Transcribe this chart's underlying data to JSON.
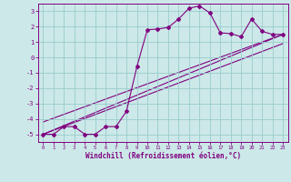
{
  "title": "",
  "xlabel": "Windchill (Refroidissement éolien,°C)",
  "ylabel": "",
  "bg_color": "#cce8e8",
  "grid_color": "#99cccc",
  "line_color": "#800080",
  "xlim": [
    -0.5,
    23.5
  ],
  "ylim": [
    -5.5,
    3.5
  ],
  "xticks": [
    0,
    1,
    2,
    3,
    4,
    5,
    6,
    7,
    8,
    9,
    10,
    11,
    12,
    13,
    14,
    15,
    16,
    17,
    18,
    19,
    20,
    21,
    22,
    23
  ],
  "yticks": [
    -5,
    -4,
    -3,
    -2,
    -1,
    0,
    1,
    2,
    3
  ],
  "series1_x": [
    0,
    1,
    2,
    3,
    4,
    5,
    6,
    7,
    8,
    9,
    10,
    11,
    12,
    13,
    14,
    15,
    16,
    17,
    18,
    19,
    20,
    21,
    22,
    23
  ],
  "series1_y": [
    -5.0,
    -5.0,
    -4.5,
    -4.5,
    -5.0,
    -5.0,
    -4.5,
    -4.5,
    -3.5,
    -0.6,
    1.8,
    1.85,
    1.95,
    2.5,
    3.2,
    3.35,
    2.9,
    1.6,
    1.55,
    1.35,
    2.5,
    1.7,
    1.5,
    1.5
  ],
  "line1_x": [
    0,
    23
  ],
  "line1_y": [
    -5.0,
    1.5
  ],
  "line2_x": [
    0,
    23
  ],
  "line2_y": [
    -4.2,
    1.5
  ],
  "line3_x": [
    0,
    23
  ],
  "line3_y": [
    -5.0,
    0.9
  ]
}
